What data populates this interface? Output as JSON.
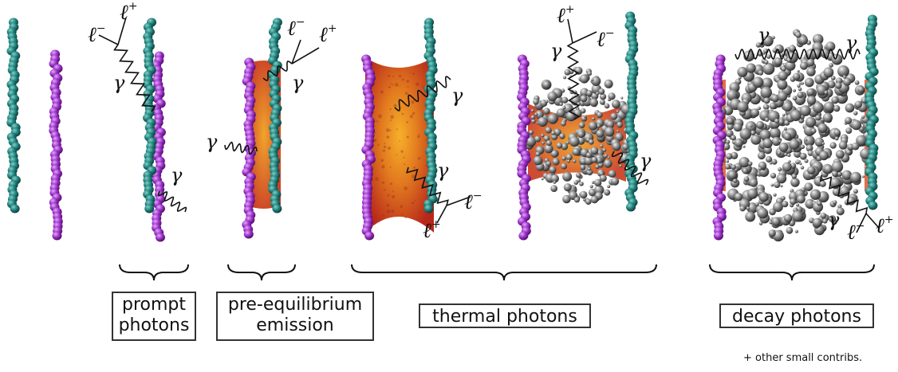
{
  "labels": {
    "prompt_line1": "prompt",
    "prompt_line2": "photons",
    "preeq_line1": "pre-equilibrium",
    "preeq_line2": "emission",
    "thermal": "thermal photons",
    "decay": "decay photons",
    "footnote": "+ other small contribs."
  },
  "symbols": {
    "photon": "γ",
    "lepton": "ℓ",
    "minus": "−",
    "plus": "+"
  },
  "colors": {
    "nucleus_teal": "#1f7f7a",
    "nucleus_purple": "#9a2fc4",
    "fireball_red": "#c7321b",
    "fireball_orange": "#f29a1c",
    "hadron_gray": "#7a7a7a"
  }
}
